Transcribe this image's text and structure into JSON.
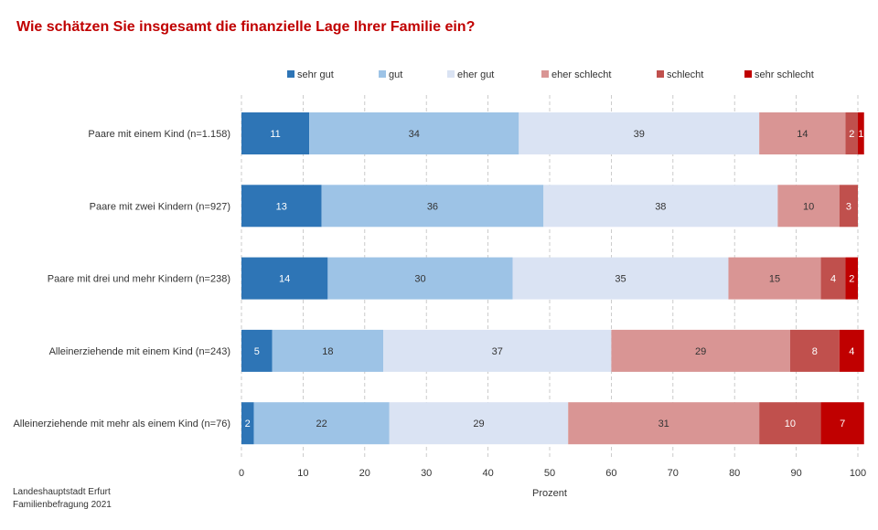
{
  "title": "Wie schätzen Sie insgesamt die finanzielle Lage Ihrer Familie ein?",
  "source": [
    "Landeshauptstadt Erfurt",
    "Familienbefragung 2021"
  ],
  "chart_data": {
    "type": "bar",
    "orientation": "horizontal",
    "stacked": true,
    "title": "Wie schätzen Sie insgesamt die finanzielle Lage Ihrer Familie ein?",
    "xlabel": "Prozent",
    "ylabel": "",
    "xlim": [
      0,
      100
    ],
    "xticks": [
      0,
      10,
      20,
      30,
      40,
      50,
      60,
      70,
      80,
      90,
      100
    ],
    "grid": "vertical dashed",
    "legend_position": "top",
    "categories": [
      "Paare mit einem Kind (n=1.158)",
      "Paare mit zwei Kindern (n=927)",
      "Paare mit drei und mehr Kindern (n=238)",
      "Alleinerziehende mit einem Kind (n=243)",
      "Alleinerziehende mit mehr als einem Kind (n=76)"
    ],
    "series": [
      {
        "name": "sehr gut",
        "color": "#2e75b6",
        "values": [
          11,
          13,
          14,
          5,
          2
        ]
      },
      {
        "name": "gut",
        "color": "#9dc3e6",
        "values": [
          34,
          36,
          30,
          18,
          22
        ]
      },
      {
        "name": "eher gut",
        "color": "#dae3f3",
        "values": [
          39,
          38,
          35,
          37,
          29
        ]
      },
      {
        "name": "eher schlecht",
        "color": "#d99594",
        "values": [
          14,
          10,
          15,
          29,
          31
        ]
      },
      {
        "name": "schlecht",
        "color": "#c0504d",
        "values": [
          2,
          3,
          4,
          8,
          10
        ]
      },
      {
        "name": "sehr schlecht",
        "color": "#c00000",
        "values": [
          1,
          0,
          2,
          4,
          7
        ]
      }
    ]
  }
}
